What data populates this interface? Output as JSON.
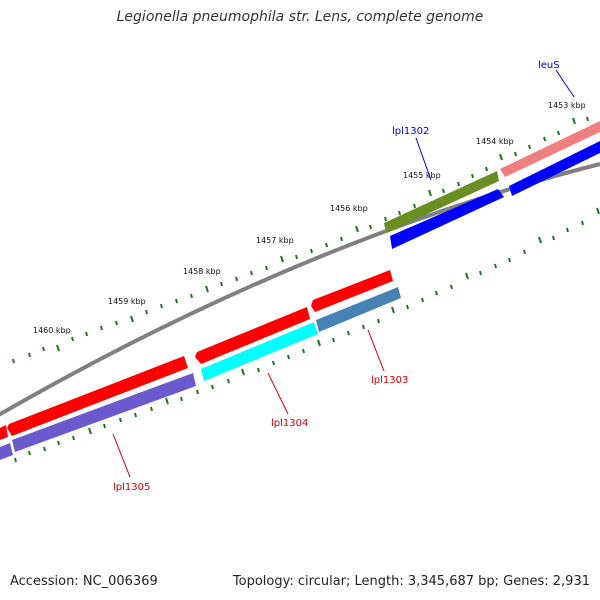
{
  "title": "Legionella pneumophila str. Lens, complete genome",
  "footer": {
    "accession": "Accession: NC_006369",
    "summary": "Topology: circular; Length: 3,345,687 bp; Genes: 2,931"
  },
  "tick_labels": [
    "1453 kbp",
    "1454 kbp",
    "1455 kbp",
    "1456 kbp",
    "1457 kbp",
    "1458 kbp",
    "1459 kbp",
    "1460 kbp"
  ],
  "genes": {
    "leuS": {
      "label": "leuS",
      "color": "#0000cc"
    },
    "lpl1302": {
      "label": "lpl1302",
      "color": "#0000cc"
    },
    "lpl1303": {
      "label": "lpl1303",
      "color": "#cc0000"
    },
    "lpl1304": {
      "label": "lpl1304",
      "color": "#cc0000"
    },
    "lpl1305": {
      "label": "lpl1305",
      "color": "#cc0000"
    }
  },
  "colors": {
    "backbone": "#808080",
    "tick": "#1a7a1a",
    "red_feature": "#ff0000",
    "pink_feature": "#f08080",
    "olive_feature": "#6b8e23",
    "blue_feature": "#0000ff",
    "cyan_feature": "#00ffff",
    "steelblue_feature": "#4682b4",
    "slateblue_feature": "#6a5acd"
  }
}
